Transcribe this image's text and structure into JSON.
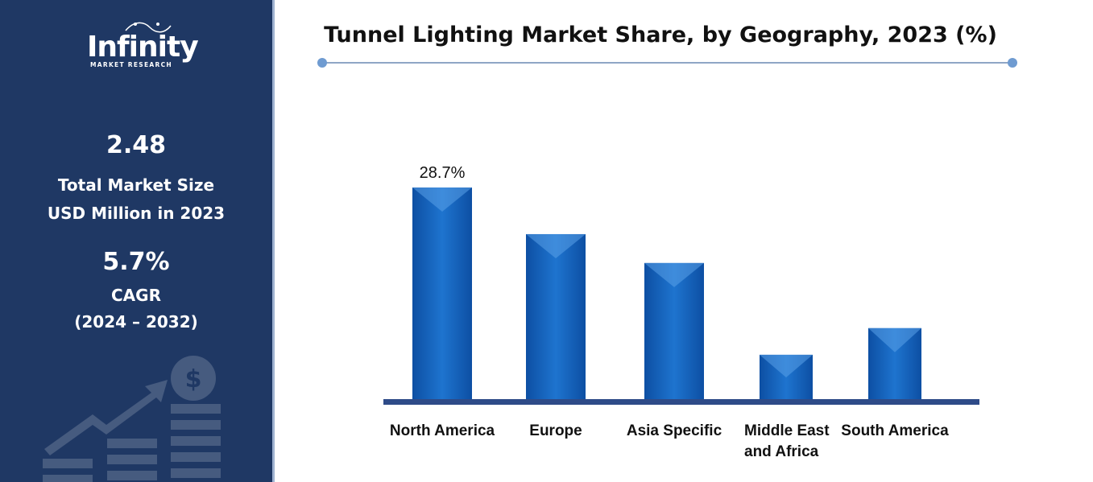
{
  "sidebar": {
    "logo_text": "Infinity",
    "logo_subtext": "MARKET RESEARCH",
    "market_size_value": "2.48",
    "market_size_label_line1": "Total Market Size",
    "market_size_label_line2": "USD Million in 2023",
    "cagr_value": "5.7%",
    "cagr_label": "CAGR",
    "cagr_period": "(2024 – 2032)",
    "decor_icon": "growth-chart-dollar-icon"
  },
  "colors": {
    "sidebar_bg": "#1f3864",
    "bar": "#1565c0",
    "axis": "#2e4b88"
  },
  "chart_data": {
    "type": "bar",
    "title": "Tunnel Lighting Market Share, by Geography, 2023 (%)",
    "categories": [
      [
        "North America"
      ],
      [
        "Europe"
      ],
      [
        "Asia Specific"
      ],
      [
        "Middle East",
        "and Africa"
      ],
      [
        "South America"
      ]
    ],
    "values": [
      28.7,
      22.4,
      18.5,
      6.1,
      9.7
    ],
    "data_labels": [
      "28.7%",
      "",
      "",
      "",
      ""
    ],
    "xlabel": "",
    "ylabel": "",
    "ylim": [
      0,
      30
    ],
    "grid": false,
    "legend": "none"
  }
}
